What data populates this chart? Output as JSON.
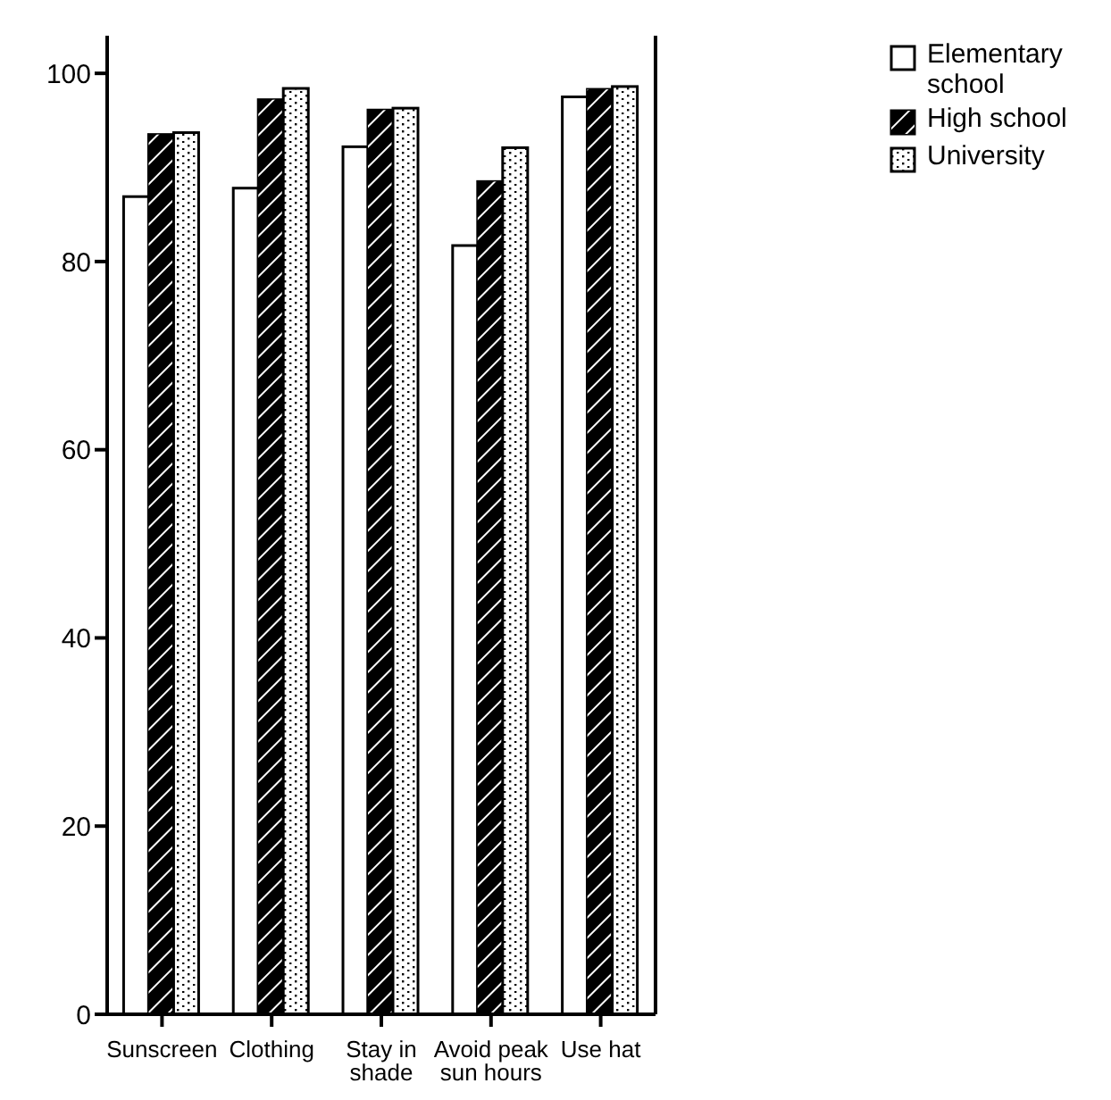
{
  "chart_data": {
    "type": "bar",
    "categories": [
      "Sunscreen",
      "Clothing",
      "Stay in shade",
      "Avoid peak sun hours",
      "Use hat"
    ],
    "series": [
      {
        "name": "Elementary school",
        "color": "#ffffff",
        "values": [
          86.9,
          87.8,
          92.2,
          81.7,
          97.5
        ]
      },
      {
        "name": "High school",
        "color": "#000000",
        "values": [
          93.5,
          97.2,
          96.1,
          88.5,
          98.3
        ]
      },
      {
        "name": "University",
        "color": "#ffffff",
        "values": [
          93.7,
          98.4,
          96.3,
          92.1,
          98.6
        ]
      }
    ],
    "ylim": [
      0,
      104
    ],
    "yticks": [
      0,
      20,
      40,
      60,
      80,
      100
    ],
    "grid": false,
    "legend": "top right"
  }
}
